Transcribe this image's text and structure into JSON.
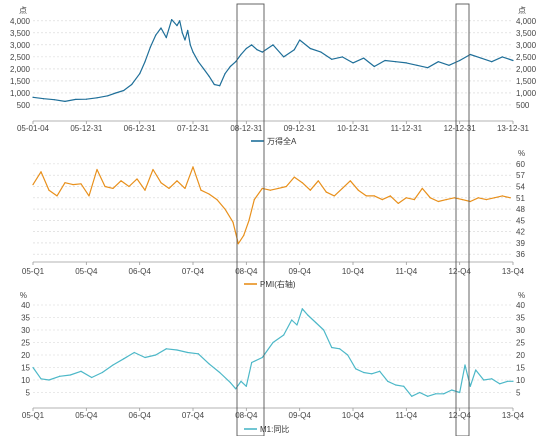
{
  "chart_data": [
    {
      "type": "line",
      "left_unit": "点",
      "right_unit": "点",
      "yticks": [
        "500",
        "1,000",
        "1,500",
        "2,000",
        "2,500",
        "3,000",
        "3,500",
        "4,000"
      ],
      "ylim": [
        0,
        4200
      ],
      "xticks": [
        "05-01-04",
        "05-12-31",
        "06-12-31",
        "07-12-31",
        "08-12-31",
        "09-12-31",
        "10-12-31",
        "11-12-31",
        "12-12-31",
        "13-12-31"
      ],
      "series": [
        {
          "name": "万得全A",
          "color": "#1f6f99",
          "x": [
            0.0,
            0.2,
            0.4,
            0.6,
            0.8,
            1.0,
            1.2,
            1.4,
            1.55,
            1.7,
            1.85,
            2.0,
            2.1,
            2.2,
            2.3,
            2.4,
            2.5,
            2.6,
            2.7,
            2.75,
            2.8,
            2.85,
            2.9,
            2.95,
            3.0,
            3.1,
            3.2,
            3.3,
            3.4,
            3.5,
            3.6,
            3.7,
            3.8,
            3.9,
            4.0,
            4.1,
            4.2,
            4.3,
            4.5,
            4.7,
            4.9,
            5.0,
            5.2,
            5.4,
            5.6,
            5.8,
            6.0,
            6.2,
            6.4,
            6.6,
            6.8,
            7.0,
            7.2,
            7.4,
            7.6,
            7.8,
            8.0,
            8.2,
            8.4,
            8.6,
            8.8,
            9.0
          ],
          "y": [
            820,
            760,
            720,
            650,
            730,
            740,
            800,
            880,
            1000,
            1100,
            1350,
            1800,
            2300,
            2900,
            3400,
            3700,
            3300,
            4050,
            3800,
            4000,
            3500,
            3200,
            3600,
            3000,
            2700,
            2300,
            2000,
            1700,
            1350,
            1300,
            1800,
            2100,
            2300,
            2600,
            2850,
            3000,
            2800,
            2700,
            3000,
            2500,
            2800,
            3200,
            2850,
            2700,
            2400,
            2500,
            2250,
            2450,
            2100,
            2350,
            2300,
            2250,
            2150,
            2050,
            2300,
            2150,
            2350,
            2600,
            2450,
            2300,
            2500,
            2350
          ]
        }
      ]
    },
    {
      "type": "line",
      "right_unit": "%",
      "yticks": [
        "36",
        "39",
        "42",
        "45",
        "48",
        "51",
        "54",
        "57",
        "60"
      ],
      "ylim": [
        35,
        60.5
      ],
      "xticks": [
        "05-Q1",
        "05-Q4",
        "06-Q4",
        "07-Q4",
        "08-Q4",
        "09-Q4",
        "10-Q4",
        "11-Q4",
        "12-Q4",
        "13-Q4"
      ],
      "series": [
        {
          "name": "PMI(右轴)",
          "color": "#e8901c",
          "x": [
            0.0,
            0.15,
            0.3,
            0.45,
            0.6,
            0.75,
            0.9,
            1.05,
            1.2,
            1.35,
            1.5,
            1.65,
            1.8,
            1.95,
            2.1,
            2.25,
            2.4,
            2.55,
            2.7,
            2.85,
            3.0,
            3.15,
            3.3,
            3.45,
            3.6,
            3.75,
            3.85,
            3.95,
            4.05,
            4.15,
            4.3,
            4.45,
            4.6,
            4.75,
            4.9,
            5.05,
            5.2,
            5.35,
            5.5,
            5.65,
            5.8,
            5.95,
            6.1,
            6.25,
            6.4,
            6.55,
            6.7,
            6.85,
            7.0,
            7.15,
            7.3,
            7.45,
            7.6,
            7.75,
            7.9,
            8.05,
            8.2,
            8.35,
            8.5,
            8.65,
            8.8,
            8.95
          ],
          "y": [
            54.5,
            57.9,
            53.0,
            51.5,
            55.0,
            54.5,
            54.7,
            51.5,
            58.5,
            54.0,
            53.5,
            55.5,
            54.0,
            56.0,
            53.0,
            58.5,
            55.0,
            53.5,
            55.5,
            53.5,
            59.2,
            53.0,
            52.0,
            50.5,
            48.0,
            44.5,
            38.8,
            41.0,
            45.0,
            50.5,
            53.5,
            53.0,
            53.5,
            54.0,
            56.5,
            55.0,
            53.0,
            55.5,
            52.5,
            51.5,
            53.5,
            55.5,
            53.0,
            51.5,
            51.5,
            50.5,
            51.5,
            49.5,
            51.0,
            50.5,
            53.5,
            51.0,
            50.0,
            50.5,
            51.0,
            50.5,
            50.0,
            51.0,
            50.5,
            51.0,
            51.5,
            51.0
          ]
        }
      ]
    },
    {
      "type": "line",
      "left_unit": "%",
      "right_unit": "%",
      "yticks": [
        "5",
        "10",
        "15",
        "20",
        "25",
        "30",
        "35",
        "40"
      ],
      "ylim": [
        0,
        42
      ],
      "xticks": [
        "05-Q1",
        "05-Q4",
        "06-Q4",
        "07-Q4",
        "08-Q4",
        "09-Q4",
        "10-Q4",
        "11-Q4",
        "12-Q4",
        "13-Q4"
      ],
      "series": [
        {
          "name": "M1:同比",
          "color": "#4db8c8",
          "x": [
            0.0,
            0.15,
            0.3,
            0.5,
            0.7,
            0.9,
            1.1,
            1.3,
            1.5,
            1.7,
            1.9,
            2.1,
            2.3,
            2.5,
            2.7,
            2.9,
            3.1,
            3.3,
            3.5,
            3.7,
            3.8,
            3.9,
            4.0,
            4.1,
            4.3,
            4.5,
            4.7,
            4.85,
            4.95,
            5.05,
            5.15,
            5.3,
            5.45,
            5.6,
            5.75,
            5.9,
            6.05,
            6.2,
            6.35,
            6.5,
            6.65,
            6.8,
            6.95,
            7.1,
            7.25,
            7.4,
            7.55,
            7.7,
            7.85,
            8.0,
            8.1,
            8.2,
            8.3,
            8.45,
            8.6,
            8.75,
            8.9,
            9.0
          ],
          "y": [
            15.0,
            10.5,
            10.0,
            11.5,
            12.0,
            13.5,
            11.0,
            13.0,
            16.0,
            18.5,
            21.0,
            19.0,
            20.0,
            22.5,
            22.0,
            21.0,
            20.5,
            16.5,
            13.0,
            9.0,
            6.5,
            9.5,
            7.5,
            17.0,
            19.0,
            25.0,
            28.0,
            34.0,
            32.0,
            38.5,
            36.0,
            33.0,
            30.0,
            23.0,
            22.5,
            20.0,
            14.5,
            13.0,
            12.5,
            13.5,
            9.5,
            8.0,
            7.5,
            3.5,
            5.0,
            3.5,
            4.5,
            4.5,
            6.0,
            5.0,
            16.0,
            7.5,
            14.0,
            10.0,
            10.5,
            8.5,
            9.5,
            9.5
          ]
        }
      ]
    }
  ]
}
